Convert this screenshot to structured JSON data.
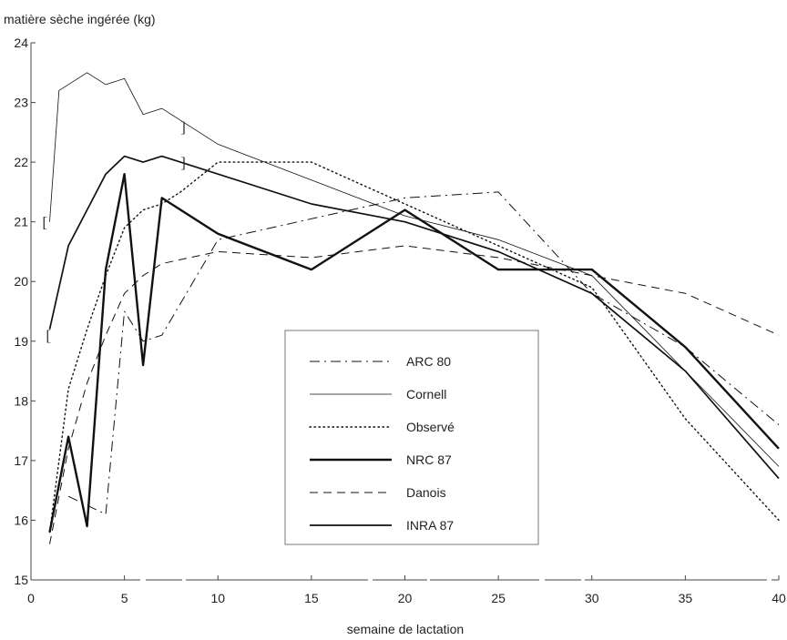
{
  "chart_data": {
    "type": "line",
    "ylabel": "matière sèche ingérée (kg)",
    "xlabel": "semaine de lactation",
    "xlim": [
      0,
      40
    ],
    "ylim": [
      15,
      24
    ],
    "x_ticks": [
      "0",
      "5",
      "10",
      "15",
      "20",
      "25",
      "30",
      "35",
      "40"
    ],
    "y_ticks": [
      "15",
      "16",
      "17",
      "18",
      "19",
      "20",
      "21",
      "22",
      "23",
      "24"
    ],
    "grid": false,
    "legend_position": "center",
    "series": [
      {
        "name": "ARC 80",
        "style": "dashdot",
        "width": 1,
        "x": [
          2,
          4,
          5,
          6,
          7,
          10,
          20,
          25,
          30,
          35,
          40
        ],
        "y": [
          16.4,
          16.1,
          19.5,
          19.0,
          19.1,
          20.7,
          21.4,
          21.5,
          19.8,
          18.9,
          17.6
        ]
      },
      {
        "name": "Cornell",
        "style": "solid",
        "width": 0.8,
        "x": [
          1,
          1.5,
          3,
          4,
          5,
          6,
          7,
          8,
          10,
          15,
          20,
          25,
          30,
          35,
          40
        ],
        "y": [
          21.0,
          23.2,
          23.5,
          23.3,
          23.4,
          22.8,
          22.9,
          22.7,
          22.3,
          21.7,
          21.1,
          20.7,
          20.1,
          18.5,
          16.9
        ]
      },
      {
        "name": "Observé",
        "style": "dotted",
        "width": 1.4,
        "x": [
          1,
          2,
          3,
          4,
          5,
          6,
          7,
          8,
          10,
          15,
          20,
          25,
          30,
          35,
          40
        ],
        "y": [
          15.8,
          18.2,
          19.2,
          20.1,
          20.9,
          21.2,
          21.3,
          21.5,
          22.0,
          22.0,
          21.3,
          20.6,
          19.9,
          17.7,
          16.0
        ]
      },
      {
        "name": "NRC 87",
        "style": "solid",
        "width": 2.4,
        "x": [
          1,
          2,
          3,
          4,
          5,
          6,
          7,
          10,
          15,
          20,
          25,
          30,
          35,
          40
        ],
        "y": [
          15.8,
          17.4,
          15.9,
          20.2,
          21.8,
          18.6,
          21.4,
          20.8,
          20.2,
          21.2,
          20.2,
          20.2,
          18.9,
          17.2
        ]
      },
      {
        "name": "Danois",
        "style": "dashed",
        "width": 1,
        "x": [
          1,
          2,
          3,
          4,
          5,
          6,
          7,
          10,
          15,
          20,
          25,
          30,
          35,
          40
        ],
        "y": [
          15.6,
          17.2,
          18.3,
          19.1,
          19.8,
          20.1,
          20.3,
          20.5,
          20.4,
          20.6,
          20.4,
          20.1,
          19.8,
          19.1
        ]
      },
      {
        "name": "INRA 87",
        "style": "solid",
        "width": 1.7,
        "x": [
          1,
          2,
          3,
          4,
          5,
          6,
          7,
          10,
          15,
          20,
          25,
          30,
          35,
          40
        ],
        "y": [
          19.2,
          20.6,
          21.2,
          21.8,
          22.1,
          22.0,
          22.1,
          21.8,
          21.3,
          21.0,
          20.5,
          19.8,
          18.5,
          16.7
        ]
      }
    ],
    "annotations": [
      {
        "text": "[",
        "x": 0.6,
        "y": 21.0
      },
      {
        "text": "[",
        "x": 0.8,
        "y": 19.1
      },
      {
        "text": "]",
        "x": 8.0,
        "y": 22.6
      },
      {
        "text": "]",
        "x": 8.0,
        "y": 22.0
      }
    ]
  }
}
